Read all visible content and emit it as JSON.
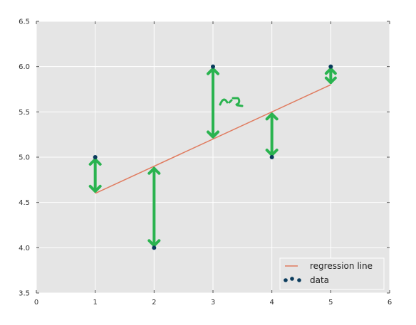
{
  "chart_data": {
    "type": "scatter",
    "xlim": [
      0,
      6
    ],
    "ylim": [
      3.5,
      6.5
    ],
    "x_ticks": [
      "0",
      "1",
      "2",
      "3",
      "4",
      "5",
      "6"
    ],
    "y_ticks": [
      "3.5",
      "4.0",
      "4.5",
      "5.0",
      "5.5",
      "6.0",
      "6.5"
    ],
    "grid": true,
    "legend_position": "bottom-right",
    "series": [
      {
        "name": "regression line",
        "kind": "line",
        "color": "#e07b5f",
        "x": [
          1,
          5
        ],
        "y": [
          4.6,
          5.8
        ]
      },
      {
        "name": "data",
        "kind": "scatter",
        "color": "#0b3c5d",
        "x": [
          1,
          2,
          3,
          4,
          5
        ],
        "y": [
          5.0,
          4.0,
          6.0,
          5.0,
          6.0
        ]
      }
    ],
    "annotations": {
      "residual_arrow_color": "#2ab34f",
      "residual_arrows": [
        {
          "x": 1,
          "y_from": 4.6,
          "y_to": 5.0
        },
        {
          "x": 2,
          "y_from": 4.9,
          "y_to": 4.0
        },
        {
          "x": 3,
          "y_from": 5.2,
          "y_to": 6.0
        },
        {
          "x": 4,
          "y_from": 5.5,
          "y_to": 5.0
        },
        {
          "x": 5,
          "y_from": 5.8,
          "y_to": 6.0
        }
      ]
    }
  }
}
